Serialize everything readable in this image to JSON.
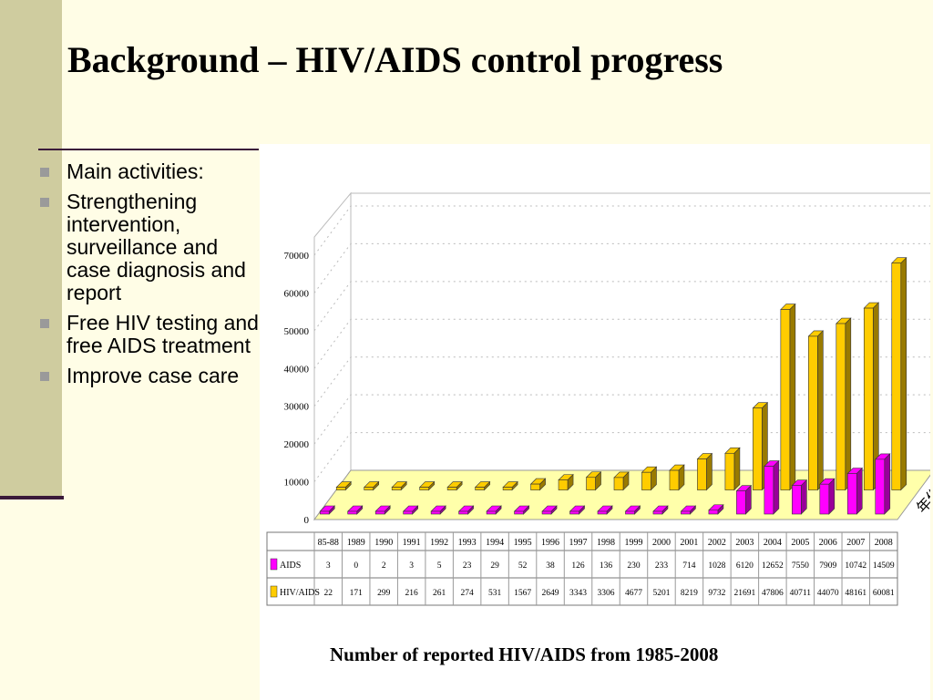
{
  "slide": {
    "title": "Background – HIV/AIDS control progress",
    "bullets": [
      "Main activities:",
      "Strengthening intervention, surveillance and case diagnosis and report",
      "Free HIV testing and free AIDS treatment",
      "Improve case care"
    ],
    "caption": "Number of reported HIV/AIDS from 1985-2008"
  },
  "chart_data": {
    "type": "bar",
    "style": "3d-clustered-with-data-table",
    "categories": [
      "85-88",
      "1989",
      "1990",
      "1991",
      "1992",
      "1993",
      "1994",
      "1995",
      "1996",
      "1997",
      "1998",
      "1999",
      "2000",
      "2001",
      "2002",
      "2003",
      "2004",
      "2005",
      "2006",
      "2007",
      "2008"
    ],
    "series": [
      {
        "name": "AIDS",
        "color": "#ff00ff",
        "values": [
          3,
          0,
          2,
          3,
          5,
          23,
          29,
          52,
          38,
          126,
          136,
          230,
          233,
          714,
          1028,
          6120,
          12652,
          7550,
          7909,
          10742,
          14509
        ]
      },
      {
        "name": "HIV/AIDS",
        "color": "#ffcc00",
        "values": [
          22,
          171,
          299,
          216,
          261,
          274,
          531,
          1567,
          2649,
          3343,
          3306,
          4677,
          5201,
          8219,
          9732,
          21691,
          47806,
          40711,
          44070,
          48161,
          60081
        ]
      }
    ],
    "y_ticks": [
      0,
      10000,
      20000,
      30000,
      40000,
      50000,
      60000,
      70000
    ],
    "ylim": [
      0,
      70000
    ],
    "depth_axis_label": "年份",
    "grid": "horizontal-dotted",
    "legend": "in data table"
  }
}
